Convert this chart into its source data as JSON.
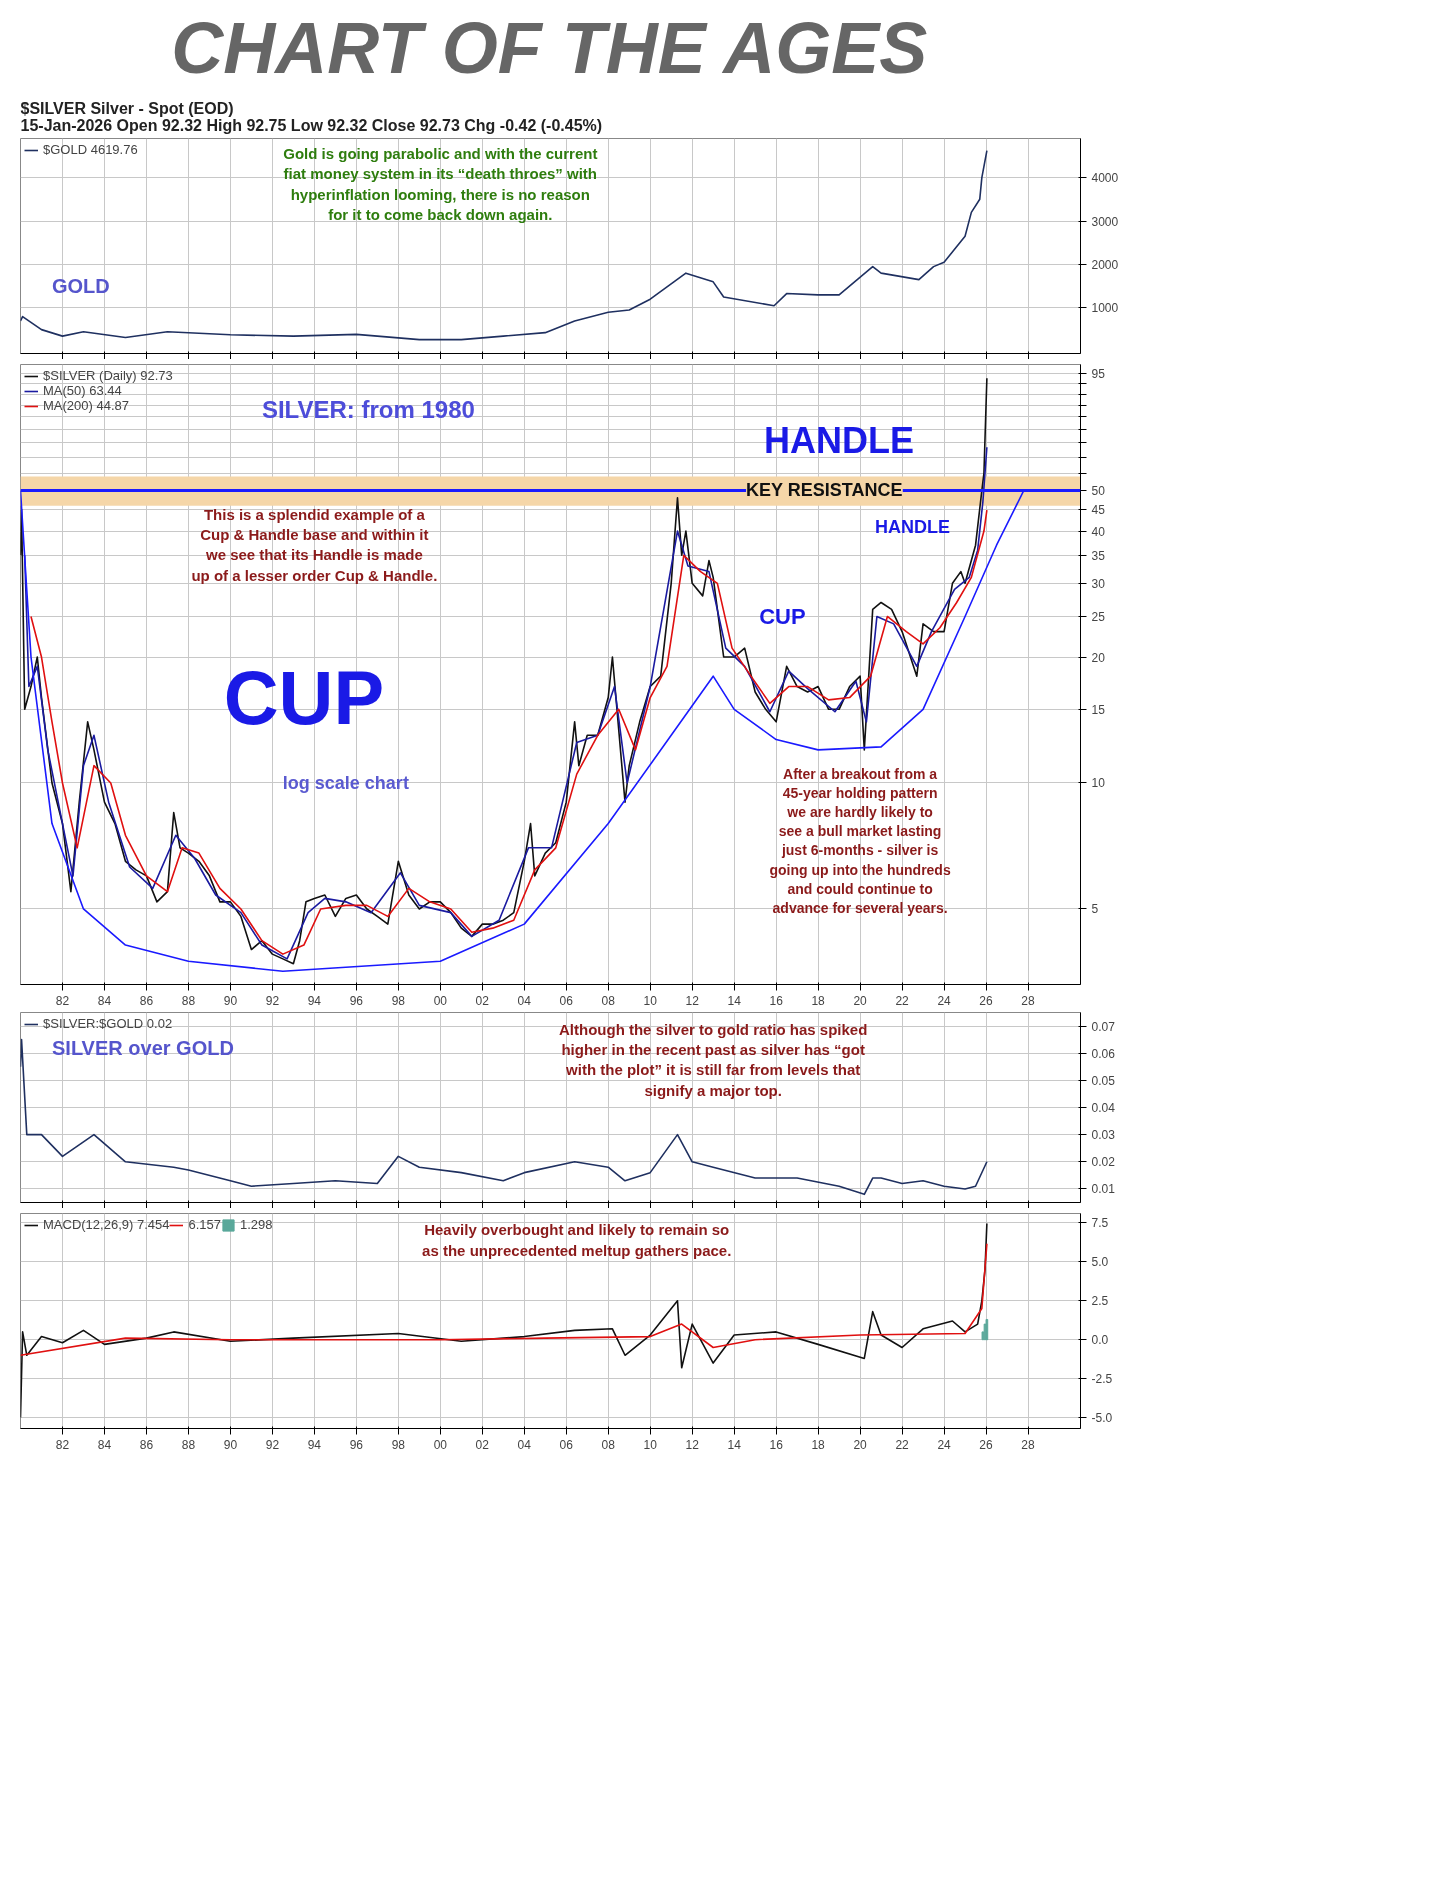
{
  "chart_data": [
    {
      "type": "line",
      "title": "CHART OF THE AGES",
      "subtitle": "$SILVER Silver - Spot (EOD)\n15-Jan-2026      Open 92.32  High 92.75  Low 92.32  Close 92.73  Chg -0.42 (-0.45%)",
      "xlim": [
        1980,
        2030.5
      ],
      "ylim": [
        -50,
        4900
      ],
      "yticks": [
        1000,
        2000,
        3000,
        4000
      ],
      "xticks": [
        {
          "value": 1982,
          "label": null
        },
        {
          "value": 1984,
          "label": null
        },
        {
          "value": 1986,
          "label": null
        },
        {
          "value": 1988,
          "label": null
        },
        {
          "value": 1990,
          "label": null
        },
        {
          "value": 1992,
          "label": null
        },
        {
          "value": 1994,
          "label": null
        },
        {
          "value": 1996,
          "label": null
        },
        {
          "value": 1998,
          "label": null
        },
        {
          "value": 2000,
          "label": null
        },
        {
          "value": 2002,
          "label": null
        },
        {
          "value": 2004,
          "label": null
        },
        {
          "value": 2006,
          "label": null
        },
        {
          "value": 2008,
          "label": null
        },
        {
          "value": 2010,
          "label": null
        },
        {
          "value": 2012,
          "label": null
        },
        {
          "value": 2014,
          "label": null
        },
        {
          "value": 2016,
          "label": null
        },
        {
          "value": 2018,
          "label": null
        },
        {
          "value": 2020,
          "label": null
        },
        {
          "value": 2022,
          "label": null
        },
        {
          "value": 2024,
          "label": null
        },
        {
          "value": 2026,
          "label": null
        },
        {
          "value": 2028,
          "label": null
        }
      ],
      "tick_labels": "y",
      "grid": true,
      "legend": "top left",
      "series": [
        {
          "name": "$GOLD 4619.76",
          "color": "#1f3060",
          "x": [
            1980,
            1980.1,
            1981,
            1982,
            1983,
            1985,
            1987,
            1990,
            1993,
            1996,
            1999,
            2001,
            2003,
            2005,
            2006.4,
            2008,
            2009,
            2010,
            2011.7,
            2013,
            2013.5,
            2015.9,
            2016.5,
            2018,
            2019,
            2020.6,
            2021,
            2022.8,
            2023.5,
            2024,
            2024.5,
            2025,
            2025.3,
            2025.7,
            2025.8,
            2026.04
          ],
          "values": [
            700,
            800,
            500,
            350,
            450,
            320,
            450,
            380,
            350,
            390,
            270,
            270,
            350,
            430,
            700,
            900,
            950,
            1200,
            1800,
            1600,
            1250,
            1050,
            1330,
            1300,
            1300,
            1950,
            1800,
            1650,
            1950,
            2050,
            2350,
            2650,
            3200,
            3500,
            4000,
            4619.76
          ]
        }
      ],
      "annotations": [
        "Gold is going parabolic and with the current\nfiat money system in its “death throes” with\nhyperinflation looming, there is no reason\nfor it to come back down again.",
        "GOLD"
      ]
    },
    {
      "type": "line",
      "xlim": [
        1980,
        2030.5
      ],
      "ylim": [
        3.3,
        100
      ],
      "log": "y",
      "yticks": [
        5,
        10,
        15,
        20,
        25,
        30,
        35,
        40,
        45,
        50,
        {
          "value": 55,
          "label": null
        },
        {
          "value": 60,
          "label": null
        },
        {
          "value": 65,
          "label": null
        },
        {
          "value": 70,
          "label": null
        },
        {
          "value": 75,
          "label": null
        },
        {
          "value": 80,
          "label": null
        },
        {
          "value": 85,
          "label": null
        },
        {
          "value": 90,
          "label": null
        },
        95
      ],
      "xticks": [
        {
          "value": 1982,
          "label": "82"
        },
        {
          "value": 1984,
          "label": "84"
        },
        {
          "value": 1986,
          "label": "86"
        },
        {
          "value": 1988,
          "label": "88"
        },
        {
          "value": 1990,
          "label": "90"
        },
        {
          "value": 1992,
          "label": "92"
        },
        {
          "value": 1994,
          "label": "94"
        },
        {
          "value": 1996,
          "label": "96"
        },
        {
          "value": 1998,
          "label": "98"
        },
        {
          "value": 2000,
          "label": "00"
        },
        {
          "value": 2002,
          "label": "02"
        },
        {
          "value": 2004,
          "label": "04"
        },
        {
          "value": 2006,
          "label": "06"
        },
        {
          "value": 2008,
          "label": "08"
        },
        {
          "value": 2010,
          "label": "10"
        },
        {
          "value": 2012,
          "label": "12"
        },
        {
          "value": 2014,
          "label": "14"
        },
        {
          "value": 2016,
          "label": "16"
        },
        {
          "value": 2018,
          "label": "18"
        },
        {
          "value": 2020,
          "label": "20"
        },
        {
          "value": 2022,
          "label": "22"
        },
        {
          "value": 2024,
          "label": "24"
        },
        {
          "value": 2026,
          "label": "26"
        },
        {
          "value": 2028,
          "label": "28"
        }
      ],
      "grid": true,
      "legend": "top left",
      "series": [
        {
          "name": "$SILVER (Daily) 92.73",
          "color": "#111111",
          "x": [
            1980,
            1980.05,
            1980.2,
            1980.5,
            1980.8,
            1981,
            1981.5,
            1982,
            1982.4,
            1982.8,
            1983.2,
            1983.5,
            1984,
            1984.5,
            1985,
            1985.5,
            1986,
            1986.5,
            1987,
            1987.3,
            1987.6,
            1988,
            1988.5,
            1989,
            1989.5,
            1990,
            1990.5,
            1991,
            1991.5,
            1992,
            1992.5,
            1993,
            1993.3,
            1993.6,
            1994,
            1994.5,
            1995,
            1995.5,
            1996,
            1996.5,
            1997,
            1997.5,
            1998,
            1998.5,
            1999,
            1999.5,
            2000,
            2000.5,
            2001,
            2001.5,
            2002,
            2002.5,
            2003,
            2003.5,
            2004,
            2004.3,
            2004.5,
            2005,
            2005.5,
            2006,
            2006.4,
            2006.6,
            2007,
            2007.5,
            2008,
            2008.2,
            2008.8,
            2009,
            2009.5,
            2010,
            2010.5,
            2011,
            2011.3,
            2011.5,
            2011.7,
            2012,
            2012.5,
            2012.8,
            2013,
            2013.5,
            2014,
            2014.5,
            2015,
            2015.5,
            2016,
            2016.5,
            2017,
            2017.5,
            2018,
            2018.5,
            2019,
            2019.5,
            2020,
            2020.2,
            2020.6,
            2021,
            2021.5,
            2022,
            2022.7,
            2023,
            2023.5,
            2024,
            2024.4,
            2024.8,
            2025,
            2025.5,
            2025.8,
            2025.9,
            2026,
            2026.04
          ],
          "values": [
            35,
            45,
            15,
            17,
            20,
            16,
            10,
            8,
            5.5,
            9,
            14,
            12,
            9,
            8,
            6.5,
            6.2,
            6,
            5.2,
            5.5,
            8.5,
            7,
            6.8,
            6.5,
            6,
            5.2,
            5.2,
            4.8,
            4,
            4.2,
            3.9,
            3.8,
            3.7,
            4.2,
            5.2,
            5.3,
            5.4,
            4.8,
            5.3,
            5.4,
            5,
            4.8,
            4.6,
            6.5,
            5.4,
            5,
            5.2,
            5.2,
            4.9,
            4.5,
            4.3,
            4.6,
            4.6,
            4.7,
            4.9,
            6.5,
            8,
            6,
            6.8,
            7.2,
            9,
            14,
            11,
            13,
            13,
            16,
            20,
            9,
            11,
            14,
            17,
            18,
            30,
            48,
            35,
            40,
            30,
            28,
            34,
            31,
            20,
            20,
            21,
            16.5,
            15,
            14,
            19,
            17,
            16.5,
            17,
            15,
            15,
            17,
            18,
            12,
            26,
            27,
            26,
            23,
            18,
            24,
            23,
            23,
            30,
            32,
            30,
            37,
            50,
            55,
            80,
            92.73
          ]
        },
        {
          "name": "MA(50) 63.44",
          "color": "#1a1aa0",
          "x": [
            1980.2,
            1980.4,
            1980.8,
            1981.3,
            1982,
            1982.5,
            1983,
            1983.5,
            1984.2,
            1985.2,
            1986.3,
            1987.4,
            1988.3,
            1989.3,
            1990.5,
            1991.5,
            1992.7,
            1993.7,
            1994.5,
            1995.5,
            1996.7,
            1998.1,
            1999,
            2000.5,
            2001.5,
            2002.8,
            2004.2,
            2005.3,
            2006.5,
            2007.5,
            2008.3,
            2008.9,
            2010,
            2011.3,
            2011.8,
            2012.8,
            2013.6,
            2014.5,
            2015.7,
            2016.6,
            2017.5,
            2018.8,
            2019.8,
            2020.3,
            2020.8,
            2021.6,
            2022.7,
            2023.4,
            2024.5,
            2025.2,
            2025.6,
            2025.85,
            2026.04
          ],
          "values": [
            35,
            17,
            19,
            12,
            8,
            6,
            11,
            13,
            9,
            6.3,
            5.6,
            7.5,
            6.6,
            5.4,
            4.9,
            4.1,
            3.8,
            4.9,
            5.3,
            5.2,
            4.9,
            6.1,
            5.1,
            4.9,
            4.3,
            4.7,
            7,
            7,
            12.5,
            13,
            17,
            10,
            17,
            40,
            33,
            32,
            21,
            19,
            14.8,
            18.5,
            16.8,
            14.8,
            17.5,
            14,
            25,
            24,
            19,
            23,
            29,
            31,
            36,
            47,
            63.44
          ]
        },
        {
          "name": "MA(200) 44.87",
          "color": "#e01010",
          "x": [
            1980.5,
            1981,
            1981.5,
            1982,
            1982.7,
            1983.5,
            1984.3,
            1985,
            1986,
            1987,
            1987.7,
            1988.5,
            1989.5,
            1990.5,
            1991.5,
            1992.5,
            1993.5,
            1994.3,
            1995.5,
            1996.5,
            1997.5,
            1998.5,
            1999.5,
            2000.5,
            2001.5,
            2002.5,
            2003.5,
            2004.5,
            2005.5,
            2006.5,
            2007.5,
            2008.5,
            2009.3,
            2010,
            2010.8,
            2011.6,
            2012.4,
            2013.2,
            2013.9,
            2014.8,
            2015.7,
            2016.6,
            2017.5,
            2018.5,
            2019.5,
            2020.5,
            2021.3,
            2022.2,
            2023,
            2023.8,
            2024.6,
            2025.3,
            2025.9,
            2026.04
          ],
          "values": [
            25,
            20,
            14,
            10,
            7,
            11,
            10,
            7.5,
            6,
            5.5,
            7,
            6.8,
            5.6,
            5,
            4.2,
            3.9,
            4.1,
            5,
            5.1,
            5.1,
            4.8,
            5.6,
            5.2,
            5,
            4.4,
            4.5,
            4.7,
            6.2,
            7,
            10.5,
            13,
            15,
            12,
            16,
            19,
            35,
            32,
            30,
            21,
            18,
            15.5,
            17,
            17,
            15.8,
            16,
            18,
            25,
            23,
            21.5,
            23.5,
            27,
            31,
            40,
            44.87
          ]
        },
        {
          "color": "#1a1aff",
          "x": [
            1980,
            1980.5,
            1981.5,
            1983,
            1985,
            1988,
            1992.5,
            2000,
            2004,
            2008,
            2011,
            2013,
            2014,
            2016,
            2018,
            2021,
            2023,
            2025,
            2026.5,
            2027.8
          ],
          "values": [
            50,
            20,
            8,
            5,
            4.1,
            3.75,
            3.55,
            3.75,
            4.6,
            8,
            13,
            18,
            15,
            12.7,
            12,
            12.2,
            15,
            25,
            37,
            50
          ]
        }
      ],
      "ref_lines": [
        {
          "axis": "y",
          "value": 50,
          "label": "KEY RESISTANCE",
          "color": "#1a1aff"
        }
      ],
      "bands": [
        {
          "axis": "y",
          "from": 46,
          "to": 54,
          "color": "#f5d6a8"
        }
      ],
      "annotations": [
        "SILVER: from 1980",
        "HANDLE",
        "HANDLE",
        "This is a splendid example of a\nCup & Handle base and within it\nwe see that its Handle is made\nup of a lesser order Cup & Handle.",
        "CUP",
        "CUP",
        "log scale chart",
        "After a breakout from a\n45-year holding pattern\nwe are hardly likely to\nsee a bull market lasting\njust 6-months - silver is\ngoing up into the hundreds\nand could continue to\nadvance for several years."
      ]
    },
    {
      "type": "line",
      "xlim": [
        1980,
        2030.5
      ],
      "ylim": [
        0.005,
        0.075
      ],
      "yticks": [
        {
          "value": 0.01,
          "label": "0.01"
        },
        {
          "value": 0.02,
          "label": "0.02"
        },
        {
          "value": 0.03,
          "label": "0.03"
        },
        {
          "value": 0.04,
          "label": "0.04"
        },
        {
          "value": 0.05,
          "label": "0.05"
        },
        {
          "value": 0.06,
          "label": "0.06"
        },
        {
          "value": 0.07,
          "label": "0.07"
        }
      ],
      "xticks": [
        {
          "value": 1982,
          "label": null
        },
        {
          "value": 1984,
          "label": null
        },
        {
          "value": 1986,
          "label": null
        },
        {
          "value": 1988,
          "label": null
        },
        {
          "value": 1990,
          "label": null
        },
        {
          "value": 1992,
          "label": null
        },
        {
          "value": 1994,
          "label": null
        },
        {
          "value": 1996,
          "label": null
        },
        {
          "value": 1998,
          "label": null
        },
        {
          "value": 2000,
          "label": null
        },
        {
          "value": 2002,
          "label": null
        },
        {
          "value": 2004,
          "label": null
        },
        {
          "value": 2006,
          "label": null
        },
        {
          "value": 2008,
          "label": null
        },
        {
          "value": 2010,
          "label": null
        },
        {
          "value": 2012,
          "label": null
        },
        {
          "value": 2014,
          "label": null
        },
        {
          "value": 2016,
          "label": null
        },
        {
          "value": 2018,
          "label": null
        },
        {
          "value": 2020,
          "label": null
        },
        {
          "value": 2022,
          "label": null
        },
        {
          "value": 2024,
          "label": null
        },
        {
          "value": 2026,
          "label": null
        },
        {
          "value": 2028,
          "label": null
        }
      ],
      "tick_labels": "y",
      "grid": true,
      "legend": "top left",
      "series": [
        {
          "name": "$SILVER:$GOLD 0.02",
          "color": "#1f3060",
          "x": [
            1980,
            1980.05,
            1980.3,
            1981,
            1982,
            1983.5,
            1985,
            1987.3,
            1988,
            1990,
            1991,
            1993,
            1995,
            1997,
            1998,
            1999,
            2001,
            2003,
            2004,
            2006.4,
            2008,
            2008.8,
            2010,
            2011.3,
            2012,
            2013,
            2015,
            2017,
            2019,
            2020.2,
            2020.6,
            2021,
            2022,
            2023,
            2024,
            2025,
            2025.5,
            2026.04
          ],
          "values": [
            0.055,
            0.065,
            0.03,
            0.03,
            0.022,
            0.03,
            0.02,
            0.018,
            0.017,
            0.013,
            0.011,
            0.012,
            0.013,
            0.012,
            0.022,
            0.018,
            0.016,
            0.013,
            0.016,
            0.02,
            0.018,
            0.013,
            0.016,
            0.03,
            0.02,
            0.018,
            0.014,
            0.014,
            0.011,
            0.008,
            0.014,
            0.014,
            0.012,
            0.013,
            0.011,
            0.01,
            0.011,
            0.02
          ]
        }
      ],
      "annotations": [
        "SILVER over GOLD",
        "Although the silver to gold ratio has spiked\nhigher in the recent past as silver has “got\nwith the plot” it is still far from levels that\nsignify a major top."
      ]
    },
    {
      "type": "line",
      "xlim": [
        1980,
        2030.5
      ],
      "ylim": [
        -5.7,
        8.1
      ],
      "yticks": [
        {
          "value": -5,
          "label": "-5.0"
        },
        {
          "value": -2.5,
          "label": "-2.5"
        },
        {
          "value": 0,
          "label": "0.0"
        },
        {
          "value": 2.5,
          "label": "2.5"
        },
        {
          "value": 5,
          "label": "5.0"
        },
        {
          "value": 7.5,
          "label": "7.5"
        }
      ],
      "xticks": [
        {
          "value": 1982,
          "label": "82"
        },
        {
          "value": 1984,
          "label": "84"
        },
        {
          "value": 1986,
          "label": "86"
        },
        {
          "value": 1988,
          "label": "88"
        },
        {
          "value": 1990,
          "label": "90"
        },
        {
          "value": 1992,
          "label": "92"
        },
        {
          "value": 1994,
          "label": "94"
        },
        {
          "value": 1996,
          "label": "96"
        },
        {
          "value": 1998,
          "label": "98"
        },
        {
          "value": 2000,
          "label": "00"
        },
        {
          "value": 2002,
          "label": "02"
        },
        {
          "value": 2004,
          "label": "04"
        },
        {
          "value": 2006,
          "label": "06"
        },
        {
          "value": 2008,
          "label": "08"
        },
        {
          "value": 2010,
          "label": "10"
        },
        {
          "value": 2012,
          "label": "12"
        },
        {
          "value": 2014,
          "label": "14"
        },
        {
          "value": 2016,
          "label": "16"
        },
        {
          "value": 2018,
          "label": "18"
        },
        {
          "value": 2020,
          "label": "20"
        },
        {
          "value": 2022,
          "label": "22"
        },
        {
          "value": 2024,
          "label": "24"
        },
        {
          "value": 2026,
          "label": "26"
        },
        {
          "value": 2028,
          "label": "28"
        }
      ],
      "grid": true,
      "legend": "top left",
      "series": [
        {
          "name": "MACD(12,26,9) 7.454",
          "color": "#111111",
          "x": [
            1980,
            1980.1,
            1980.3,
            1981,
            1982,
            1983,
            1984,
            1986,
            1987.3,
            1990,
            1993,
            1998,
            2001,
            2004,
            2006.4,
            2008.2,
            2008.8,
            2010,
            2011.3,
            2011.5,
            2012,
            2013,
            2014,
            2016,
            2018,
            2020.2,
            2020.6,
            2021,
            2022,
            2023,
            2024.4,
            2025,
            2025.6,
            2025.8,
            2025.95,
            2026.04
          ],
          "values": [
            -5,
            0.5,
            -1,
            0.2,
            -0.2,
            0.6,
            -0.3,
            0.1,
            0.5,
            -0.1,
            0.1,
            0.4,
            -0.1,
            0.2,
            0.6,
            0.7,
            -1,
            0.3,
            2.5,
            -1.8,
            1,
            -1.5,
            0.3,
            0.5,
            -0.3,
            -1.2,
            1.8,
            0.3,
            -0.5,
            0.7,
            1.2,
            0.5,
            1,
            2.5,
            4.5,
            7.454
          ]
        },
        {
          "name": "6.157",
          "color": "#e01010",
          "x": [
            1980,
            1985,
            1990,
            1995,
            2000,
            2005,
            2010,
            2011.5,
            2013,
            2015,
            2020,
            2025,
            2025.8,
            2026.04
          ],
          "values": [
            -1,
            0.1,
            0,
            0,
            0,
            0.1,
            0.2,
            1,
            -0.5,
            0,
            0.3,
            0.4,
            2,
            6.157
          ]
        },
        {
          "name": "1.298",
          "color": "#5aa89a",
          "type": "bar",
          "x": [
            2025.85,
            2025.95,
            2026.04
          ],
          "values": [
            0.5,
            1,
            1.298
          ]
        }
      ],
      "annotations": [
        "Heavily overbought and likely to remain so\nas the unprecedented meltup gathers pace."
      ]
    }
  ]
}
